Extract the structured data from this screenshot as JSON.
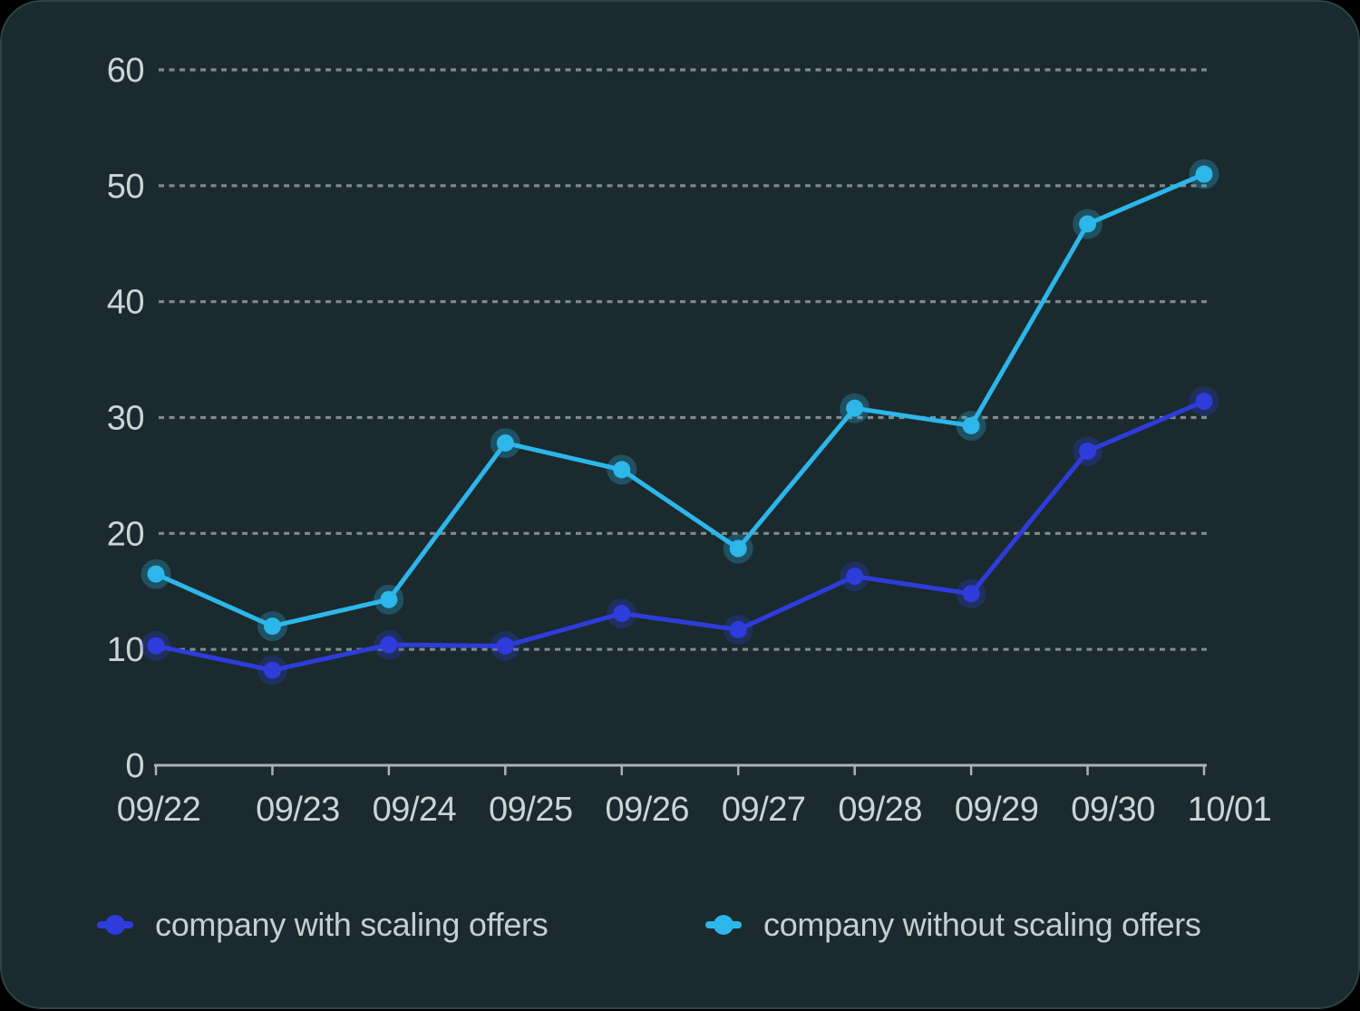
{
  "chart_data": {
    "type": "line",
    "title": "",
    "x_labels": [
      "09/22",
      "09/23",
      "09/24",
      "09/25",
      "09/26",
      "09/27",
      "09/28",
      "09/29",
      "09/30",
      "10/01"
    ],
    "series": [
      {
        "name": "company with scaling offers",
        "color": "#2e3cdc",
        "values": [
          10.3,
          8.2,
          10.4,
          10.3,
          13.1,
          11.7,
          16.3,
          14.8,
          27.1,
          31.4
        ]
      },
      {
        "name": "company without scaling offers",
        "color": "#2db6e9",
        "values": [
          16.5,
          12.0,
          14.3,
          27.8,
          25.5,
          18.7,
          30.8,
          29.3,
          46.7,
          51.0
        ]
      }
    ],
    "ylim": [
      0,
      60
    ],
    "y_ticks": [
      0,
      10,
      20,
      30,
      40,
      50,
      60
    ],
    "grid": "horizontal dotted lines at each y tick except 0",
    "legend_position": "bottom-left",
    "point_style": "filled dot with translucent halo"
  },
  "colors": {
    "page_background": "#000000",
    "card_background": "#1a2a2e",
    "card_border": "#2b4347",
    "grid": "#8b9798",
    "axis": "#a9b3b4",
    "tick_label": "#ccd5d5",
    "legend_text": "#c5cfcf"
  }
}
